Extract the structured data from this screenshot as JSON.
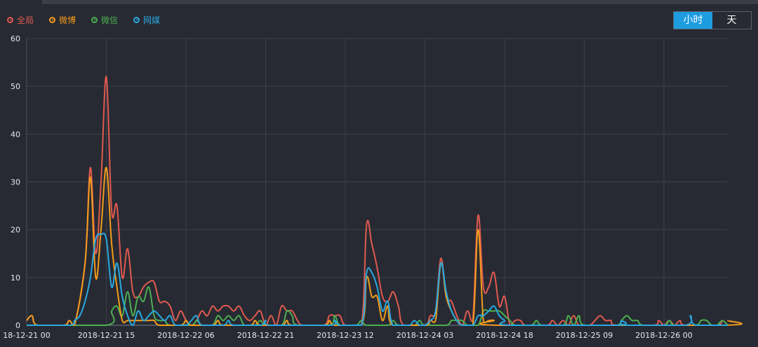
{
  "toggle": {
    "hour_label": "小时",
    "day_label": "天",
    "active": "hour"
  },
  "colors": {
    "全局": "#e05a4f",
    "微博": "#f39c1d",
    "微信": "#4caf50",
    "网媒": "#29a8e0"
  },
  "chart_data": {
    "type": "line",
    "title": "",
    "xlabel": "",
    "ylabel": "",
    "ylim": [
      0,
      60
    ],
    "y_ticks": [
      0,
      10,
      20,
      30,
      40,
      50,
      60
    ],
    "x_ticks": [
      "18-12-21 00",
      "2018-12-21 15",
      "2018-12-22 06",
      "2018-12-22 21",
      "2018-12-23 12",
      "2018-12-24 03",
      "2018-12-24 18",
      "2018-12-25 09",
      "2018-12-26 00"
    ],
    "x_tick_step_hours": 15,
    "x_range_hours": [
      0,
      132
    ],
    "grid": true,
    "legend_position": "top-left",
    "series": [
      {
        "name": "全局",
        "color": "#e05a4f",
        "points": [
          [
            0,
            1
          ],
          [
            1,
            2
          ],
          [
            2,
            0
          ],
          [
            7,
            0
          ],
          [
            8,
            1
          ],
          [
            9,
            0
          ],
          [
            11,
            13
          ],
          [
            12,
            33
          ],
          [
            13,
            15
          ],
          [
            14,
            30
          ],
          [
            15,
            52
          ],
          [
            16,
            24
          ],
          [
            17,
            25
          ],
          [
            18,
            10
          ],
          [
            19,
            16
          ],
          [
            20,
            7
          ],
          [
            21,
            6
          ],
          [
            22,
            8
          ],
          [
            23,
            9
          ],
          [
            24,
            9
          ],
          [
            25,
            5
          ],
          [
            26,
            5
          ],
          [
            27,
            4
          ],
          [
            28,
            1
          ],
          [
            29,
            3
          ],
          [
            30,
            1
          ],
          [
            31,
            0
          ],
          [
            32,
            1
          ],
          [
            33,
            3
          ],
          [
            34,
            2
          ],
          [
            35,
            4
          ],
          [
            36,
            3
          ],
          [
            37,
            4
          ],
          [
            38,
            4
          ],
          [
            39,
            3
          ],
          [
            40,
            4
          ],
          [
            41,
            2
          ],
          [
            42,
            1
          ],
          [
            43,
            2
          ],
          [
            44,
            3
          ],
          [
            45,
            0
          ],
          [
            46,
            2
          ],
          [
            47,
            0
          ],
          [
            48,
            4
          ],
          [
            49,
            3
          ],
          [
            50,
            3
          ],
          [
            51,
            1
          ],
          [
            52,
            0
          ],
          [
            56,
            0
          ],
          [
            57,
            2
          ],
          [
            58,
            2
          ],
          [
            59,
            2
          ],
          [
            60,
            0
          ],
          [
            63,
            0
          ],
          [
            64,
            21
          ],
          [
            65,
            17
          ],
          [
            66,
            12
          ],
          [
            67,
            6
          ],
          [
            68,
            5
          ],
          [
            69,
            7
          ],
          [
            70,
            4
          ],
          [
            71,
            0
          ],
          [
            75,
            0
          ],
          [
            76,
            2
          ],
          [
            77,
            3
          ],
          [
            78,
            14
          ],
          [
            79,
            6
          ],
          [
            80,
            5
          ],
          [
            81,
            2
          ],
          [
            82,
            0
          ],
          [
            83,
            3
          ],
          [
            84,
            1
          ],
          [
            85,
            23
          ],
          [
            86,
            8
          ],
          [
            87,
            8
          ],
          [
            88,
            11
          ],
          [
            89,
            4
          ],
          [
            90,
            6
          ],
          [
            91,
            0
          ],
          [
            92,
            1
          ],
          [
            93,
            1
          ],
          [
            94,
            0
          ],
          [
            98,
            0
          ],
          [
            99,
            1
          ],
          [
            100,
            0
          ],
          [
            101,
            1
          ],
          [
            102,
            0
          ],
          [
            103,
            2
          ],
          [
            104,
            0
          ],
          [
            106,
            0
          ],
          [
            107,
            1
          ],
          [
            108,
            2
          ],
          [
            109,
            1
          ],
          [
            110,
            1
          ],
          [
            111,
            0
          ],
          [
            118,
            0
          ],
          [
            119,
            1
          ],
          [
            120,
            0
          ],
          [
            121,
            1
          ],
          [
            122,
            0
          ],
          [
            123,
            1
          ],
          [
            124,
            0
          ],
          [
            130,
            0
          ],
          [
            131,
            1
          ],
          [
            132,
            0
          ]
        ]
      },
      {
        "name": "微博",
        "color": "#f39c1d",
        "points": [
          [
            0,
            1
          ],
          [
            1,
            2
          ],
          [
            2,
            0
          ],
          [
            7,
            0
          ],
          [
            8,
            1
          ],
          [
            9,
            0
          ],
          [
            11,
            13
          ],
          [
            12,
            31
          ],
          [
            13,
            10
          ],
          [
            14,
            20
          ],
          [
            15,
            33
          ],
          [
            16,
            17
          ],
          [
            17,
            8
          ],
          [
            18,
            1
          ],
          [
            19,
            1
          ],
          [
            20,
            1
          ],
          [
            21,
            1
          ],
          [
            22,
            1
          ],
          [
            23,
            1
          ],
          [
            24,
            1
          ],
          [
            25,
            0
          ],
          [
            29,
            0
          ],
          [
            30,
            1
          ],
          [
            31,
            0
          ],
          [
            35,
            0
          ],
          [
            36,
            1
          ],
          [
            37,
            0
          ],
          [
            42,
            0
          ],
          [
            43,
            1
          ],
          [
            44,
            0
          ],
          [
            48,
            0
          ],
          [
            49,
            1
          ],
          [
            50,
            0
          ],
          [
            56,
            0
          ],
          [
            57,
            1
          ],
          [
            58,
            0
          ],
          [
            63,
            0
          ],
          [
            64,
            10
          ],
          [
            65,
            6
          ],
          [
            66,
            6
          ],
          [
            67,
            1
          ],
          [
            68,
            4
          ],
          [
            69,
            0
          ],
          [
            75,
            0
          ],
          [
            76,
            1
          ],
          [
            77,
            1
          ],
          [
            78,
            13
          ],
          [
            79,
            6
          ],
          [
            80,
            3
          ],
          [
            81,
            1
          ],
          [
            82,
            0
          ],
          [
            84,
            0
          ],
          [
            85,
            20
          ],
          [
            86,
            1
          ],
          [
            87,
            1
          ],
          [
            88,
            1
          ],
          [
            89,
            0
          ],
          [
            131,
            0
          ],
          [
            132,
            1
          ],
          [
            133,
            0
          ]
        ]
      },
      {
        "name": "微信",
        "color": "#4caf50",
        "points": [
          [
            0,
            0
          ],
          [
            15,
            0
          ],
          [
            16,
            3
          ],
          [
            17,
            4
          ],
          [
            18,
            2
          ],
          [
            19,
            7
          ],
          [
            20,
            2
          ],
          [
            21,
            6
          ],
          [
            22,
            5
          ],
          [
            23,
            8
          ],
          [
            24,
            2
          ],
          [
            25,
            1
          ],
          [
            26,
            1
          ],
          [
            27,
            0
          ],
          [
            31,
            0
          ],
          [
            32,
            1
          ],
          [
            33,
            0
          ],
          [
            35,
            0
          ],
          [
            36,
            2
          ],
          [
            37,
            1
          ],
          [
            38,
            2
          ],
          [
            39,
            1
          ],
          [
            40,
            2
          ],
          [
            41,
            0
          ],
          [
            43,
            0
          ],
          [
            44,
            1
          ],
          [
            45,
            0
          ],
          [
            48,
            0
          ],
          [
            49,
            3
          ],
          [
            50,
            2
          ],
          [
            51,
            0
          ],
          [
            57,
            0
          ],
          [
            58,
            2
          ],
          [
            59,
            0
          ],
          [
            62,
            0
          ],
          [
            63,
            1
          ],
          [
            64,
            0
          ],
          [
            68,
            0
          ],
          [
            69,
            1
          ],
          [
            70,
            0
          ],
          [
            73,
            0
          ],
          [
            74,
            1
          ],
          [
            75,
            0
          ],
          [
            79,
            0
          ],
          [
            80,
            1
          ],
          [
            81,
            1
          ],
          [
            82,
            1
          ],
          [
            83,
            0
          ],
          [
            85,
            0
          ],
          [
            86,
            3
          ],
          [
            87,
            3
          ],
          [
            88,
            3
          ],
          [
            89,
            3
          ],
          [
            90,
            2
          ],
          [
            91,
            1
          ],
          [
            92,
            0
          ],
          [
            95,
            0
          ],
          [
            96,
            1
          ],
          [
            97,
            0
          ],
          [
            101,
            0
          ],
          [
            102,
            2
          ],
          [
            103,
            0
          ],
          [
            104,
            2
          ],
          [
            105,
            0
          ],
          [
            111,
            0
          ],
          [
            112,
            1
          ],
          [
            113,
            2
          ],
          [
            114,
            1
          ],
          [
            115,
            1
          ],
          [
            116,
            0
          ],
          [
            120,
            0
          ],
          [
            121,
            1
          ],
          [
            122,
            0
          ],
          [
            126,
            0
          ],
          [
            127,
            1
          ],
          [
            128,
            1
          ],
          [
            129,
            0
          ],
          [
            130,
            0
          ],
          [
            131,
            1
          ],
          [
            132,
            0
          ]
        ]
      },
      {
        "name": "网媒",
        "color": "#29a8e0",
        "points": [
          [
            0,
            0
          ],
          [
            8,
            0
          ],
          [
            9,
            1
          ],
          [
            10,
            2
          ],
          [
            11,
            5
          ],
          [
            12,
            10
          ],
          [
            13,
            18
          ],
          [
            14,
            19
          ],
          [
            15,
            18
          ],
          [
            16,
            8
          ],
          [
            17,
            13
          ],
          [
            18,
            6
          ],
          [
            19,
            2
          ],
          [
            20,
            0
          ],
          [
            21,
            3
          ],
          [
            22,
            1
          ],
          [
            23,
            2
          ],
          [
            24,
            3
          ],
          [
            25,
            2
          ],
          [
            26,
            1
          ],
          [
            27,
            2
          ],
          [
            28,
            0
          ],
          [
            30,
            0
          ],
          [
            31,
            1
          ],
          [
            32,
            2
          ],
          [
            33,
            0
          ],
          [
            37,
            0
          ],
          [
            38,
            1
          ],
          [
            39,
            0
          ],
          [
            44,
            0
          ],
          [
            45,
            1
          ],
          [
            46,
            0
          ],
          [
            57,
            0
          ],
          [
            58,
            1
          ],
          [
            59,
            0
          ],
          [
            63,
            0
          ],
          [
            64,
            11
          ],
          [
            65,
            11
          ],
          [
            66,
            8
          ],
          [
            67,
            3
          ],
          [
            68,
            5
          ],
          [
            69,
            0
          ],
          [
            72,
            0
          ],
          [
            73,
            1
          ],
          [
            74,
            0
          ],
          [
            75,
            0
          ],
          [
            76,
            1
          ],
          [
            77,
            3
          ],
          [
            78,
            13
          ],
          [
            79,
            7
          ],
          [
            80,
            3
          ],
          [
            81,
            1
          ],
          [
            82,
            0
          ],
          [
            84,
            0
          ],
          [
            85,
            2
          ],
          [
            86,
            2
          ],
          [
            87,
            3
          ],
          [
            88,
            4
          ],
          [
            89,
            2
          ],
          [
            90,
            1
          ],
          [
            91,
            0
          ],
          [
            111,
            0
          ],
          [
            112,
            1
          ],
          [
            113,
            0
          ],
          [
            124,
            0
          ],
          [
            125,
            2
          ],
          [
            126,
            0
          ],
          [
            132,
            0
          ]
        ]
      }
    ]
  }
}
